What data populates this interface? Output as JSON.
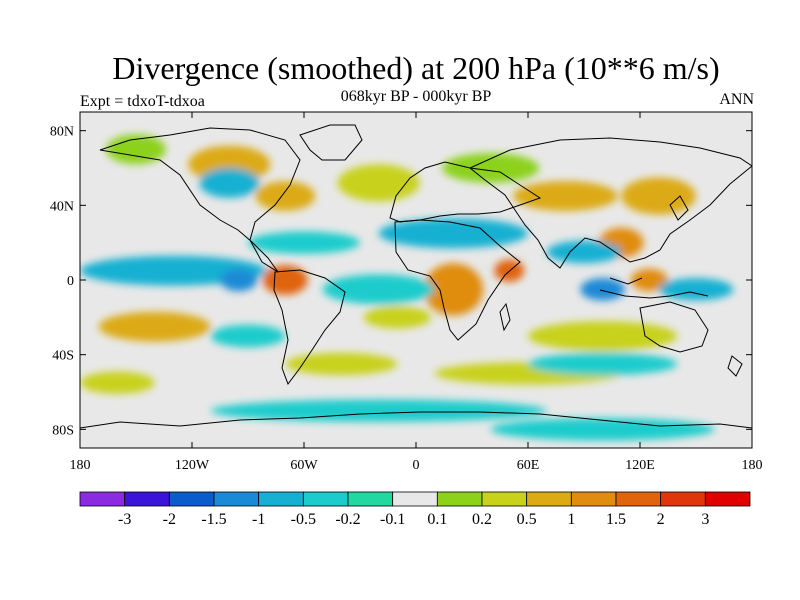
{
  "header": {
    "title": "Divergence (smoothed) at 200 hPa (10**6 m/s)",
    "left_label": "Expt = tdxoT-tdxoa",
    "center_label": "068kyr BP - 000kyr BP",
    "right_label": "ANN"
  },
  "axes": {
    "lat_ticks": [
      "80N",
      "40N",
      "0",
      "40S",
      "80S"
    ],
    "lon_ticks": [
      "180",
      "120W",
      "60W",
      "0",
      "60E",
      "120E",
      "180"
    ]
  },
  "colorbar": {
    "colors": [
      "#8a2be2",
      "#3a14d8",
      "#0a5ccc",
      "#1a8ad6",
      "#18b0d2",
      "#1ccccc",
      "#20d8a0",
      "#e8e8e8",
      "#8cd21a",
      "#c8d21a",
      "#dcaa14",
      "#e08c10",
      "#e0640e",
      "#e0360c",
      "#e00000"
    ],
    "labels": [
      "-3",
      "-2",
      "-1.5",
      "-1",
      "-0.5",
      "-0.2",
      "-0.1",
      "0.1",
      "0.2",
      "0.5",
      "1",
      "1.5",
      "2",
      "3"
    ]
  },
  "map": {
    "background_color": "#e8e8e8",
    "extent": {
      "lon": [
        -180,
        180
      ],
      "lat": [
        -90,
        90
      ]
    },
    "projection": "cylindrical-equidistant",
    "field_patches": [
      {
        "lon": -150,
        "lat": 70,
        "rx": 16,
        "ry": 8,
        "level": 8
      },
      {
        "lon": -100,
        "lat": 62,
        "rx": 22,
        "ry": 10,
        "level": 10
      },
      {
        "lon": -70,
        "lat": 45,
        "rx": 16,
        "ry": 8,
        "level": 10
      },
      {
        "lon": -20,
        "lat": 52,
        "rx": 22,
        "ry": 10,
        "level": 9
      },
      {
        "lon": 40,
        "lat": 60,
        "rx": 26,
        "ry": 8,
        "level": 8
      },
      {
        "lon": 80,
        "lat": 45,
        "rx": 28,
        "ry": 8,
        "level": 10
      },
      {
        "lon": 130,
        "lat": 45,
        "rx": 20,
        "ry": 10,
        "level": 10
      },
      {
        "lon": 110,
        "lat": 20,
        "rx": 12,
        "ry": 8,
        "level": 11
      },
      {
        "lon": -70,
        "lat": 0,
        "rx": 12,
        "ry": 8,
        "level": 12
      },
      {
        "lon": 20,
        "lat": -5,
        "rx": 16,
        "ry": 14,
        "level": 11
      },
      {
        "lon": 50,
        "lat": 5,
        "rx": 8,
        "ry": 6,
        "level": 12
      },
      {
        "lon": 125,
        "lat": 0,
        "rx": 10,
        "ry": 6,
        "level": 11
      },
      {
        "lon": -140,
        "lat": -25,
        "rx": 30,
        "ry": 8,
        "level": 10
      },
      {
        "lon": -10,
        "lat": -20,
        "rx": 18,
        "ry": 6,
        "level": 9
      },
      {
        "lon": 100,
        "lat": -30,
        "rx": 40,
        "ry": 8,
        "level": 9
      },
      {
        "lon": -40,
        "lat": -45,
        "rx": 30,
        "ry": 6,
        "level": 9
      },
      {
        "lon": 60,
        "lat": -50,
        "rx": 50,
        "ry": 6,
        "level": 9
      },
      {
        "lon": -160,
        "lat": -55,
        "rx": 20,
        "ry": 6,
        "level": 9
      },
      {
        "lon": -130,
        "lat": 5,
        "rx": 50,
        "ry": 8,
        "level": 4
      },
      {
        "lon": -95,
        "lat": 0,
        "rx": 10,
        "ry": 6,
        "level": 3
      },
      {
        "lon": -60,
        "lat": 20,
        "rx": 30,
        "ry": 6,
        "level": 5
      },
      {
        "lon": 20,
        "lat": 25,
        "rx": 40,
        "ry": 8,
        "level": 4
      },
      {
        "lon": 90,
        "lat": 15,
        "rx": 20,
        "ry": 6,
        "level": 4
      },
      {
        "lon": 100,
        "lat": -5,
        "rx": 12,
        "ry": 6,
        "level": 3
      },
      {
        "lon": 150,
        "lat": -5,
        "rx": 20,
        "ry": 6,
        "level": 4
      },
      {
        "lon": -100,
        "lat": 52,
        "rx": 16,
        "ry": 8,
        "level": 4
      },
      {
        "lon": -20,
        "lat": -5,
        "rx": 30,
        "ry": 8,
        "level": 5
      },
      {
        "lon": 100,
        "lat": -45,
        "rx": 40,
        "ry": 6,
        "level": 5
      },
      {
        "lon": -90,
        "lat": -30,
        "rx": 20,
        "ry": 6,
        "level": 5
      },
      {
        "lon": -20,
        "lat": -70,
        "rx": 90,
        "ry": 6,
        "level": 5
      },
      {
        "lon": 100,
        "lat": -80,
        "rx": 60,
        "ry": 6,
        "level": 5
      }
    ]
  }
}
